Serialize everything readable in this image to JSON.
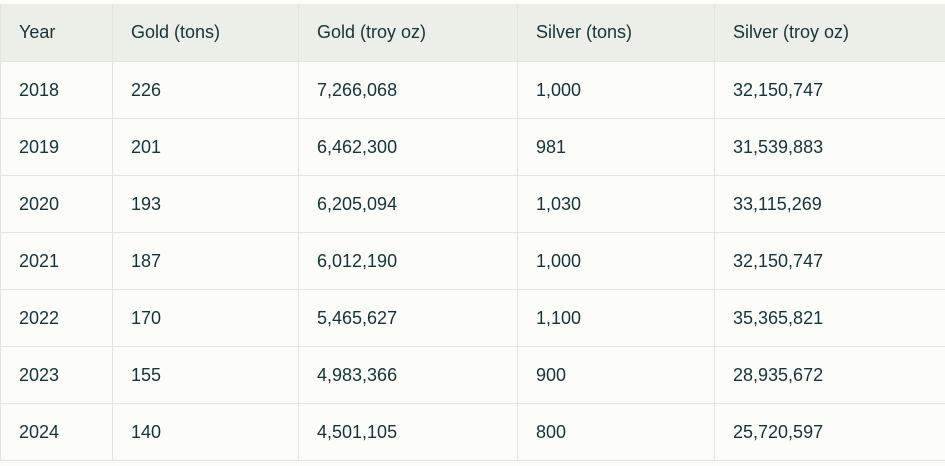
{
  "table": {
    "headers": [
      "Year",
      "Gold (tons)",
      "Gold (troy oz)",
      "Silver (tons)",
      "Silver (troy oz)"
    ],
    "rows": [
      [
        "2018",
        "226",
        "7,266,068",
        "1,000",
        "32,150,747"
      ],
      [
        "2019",
        "201",
        "6,462,300",
        "981",
        "31,539,883"
      ],
      [
        "2020",
        "193",
        "6,205,094",
        "1,030",
        "33,115,269"
      ],
      [
        "2021",
        "187",
        "6,012,190",
        "1,000",
        "32,150,747"
      ],
      [
        "2022",
        "170",
        "5,465,627",
        "1,100",
        "35,365,821"
      ],
      [
        "2023",
        "155",
        "4,983,366",
        "900",
        "28,935,672"
      ],
      [
        "2024",
        "140",
        "4,501,105",
        "800",
        "25,720,597"
      ]
    ]
  },
  "colors": {
    "header_bg": "#eceee8",
    "page_bg": "#fcfcf9",
    "border": "#e2e4de",
    "text": "#13343b"
  }
}
